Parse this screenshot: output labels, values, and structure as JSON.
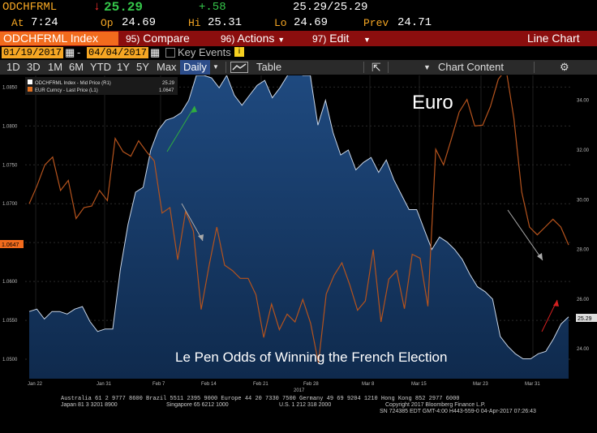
{
  "header": {
    "ticker": "ODCHFRML",
    "arrow": "↓",
    "last": "25.29",
    "change": "+.58",
    "bid_ask": "25.29/25.29",
    "at_label": "At",
    "time": "7:24",
    "op_label": "Op",
    "open": "24.69",
    "hi_label": "Hi",
    "high": "25.31",
    "lo_label": "Lo",
    "low": "24.69",
    "prev_label": "Prev",
    "prev": "24.71"
  },
  "menu": {
    "security": "ODCHFRML Index",
    "compare_num": "95)",
    "compare": "Compare",
    "actions_num": "96)",
    "actions": "Actions",
    "edit_num": "97)",
    "edit": "Edit",
    "view": "Line Chart"
  },
  "date_range": {
    "start": "01/19/2017",
    "dash": "-",
    "end": "04/04/2017",
    "key_events": "Key Events"
  },
  "toolbar": {
    "periods": [
      "1D",
      "3D",
      "1M",
      "6M",
      "YTD",
      "1Y",
      "5Y",
      "Max"
    ],
    "frequency": "Daily",
    "table": "Table",
    "chart_content": "Chart Content"
  },
  "legend": {
    "s1": "ODCHFRML Index - Mid Price (R1)",
    "s1_val": "25.29",
    "s2": "EUR Curncy - Last Price (L1)",
    "s2_val": "1.0647"
  },
  "annotations": {
    "euro": "Euro",
    "lepen": "Le Pen Odds of Winning the French Election"
  },
  "price_tags": {
    "left": "1.0647",
    "right": "25.29"
  },
  "footer": {
    "line1": "Australia 61 2 9777 8600 Brazil 5511 2395 9000 Europe 44 20 7330 7500 Germany 49 69 9204 1210 Hong Kong 852 2977 6000",
    "line2a": "Japan 81 3 3201 8900",
    "line2b": "Singapore 65 6212 1000",
    "line2c": "U.S. 1 212 318 2000",
    "line2d": "Copyright 2017 Bloomberg Finance L.P.",
    "line3": "SN 724385 EDT GMT-4:00 H443-559-0 04-Apr-2017 07:26:43"
  },
  "colors": {
    "accent_orange": "#f26b1d",
    "amber": "#f5a623",
    "menu_red": "#8b0e0e",
    "area_fill": "#173a66",
    "euro_line": "#b5531d"
  },
  "chart_data": {
    "type": "area",
    "title": "",
    "x_ticks": [
      "Jan 22",
      "Jan 31",
      "Feb 7",
      "Feb 14",
      "Feb 21",
      "Feb 28",
      "Mar 8",
      "Mar 15",
      "Mar 23",
      "Mar 31"
    ],
    "x_sub": "2017",
    "left_axis": {
      "ticks": [
        "1.0500",
        "1.0550",
        "1.0600",
        "1.0650",
        "1.0700",
        "1.0750",
        "1.0800",
        "1.0850"
      ],
      "ylim": [
        1.0475,
        1.0865
      ]
    },
    "right_axis": {
      "ticks": [
        "24.00",
        "26.00",
        "28.00",
        "30.00",
        "32.00",
        "34.00"
      ],
      "ylim": [
        22.8,
        35.0
      ]
    },
    "series": [
      {
        "name": "ODCHFRML Index - Mid Price (R1)",
        "axis": "right",
        "values": [
          25.5,
          25.6,
          25.2,
          25.5,
          25.5,
          25.4,
          25.6,
          25.7,
          25.1,
          24.7,
          24.8,
          24.8,
          27.2,
          29.0,
          30.3,
          30.5,
          32.0,
          32.8,
          33.2,
          33.3,
          33.5,
          34.0,
          35.0,
          35.0,
          34.9,
          34.5,
          35.0,
          34.2,
          33.8,
          34.2,
          34.6,
          34.8,
          34.1,
          34.5,
          35.0,
          35.3,
          35.0,
          35.0,
          33.0,
          34.0,
          32.7,
          31.8,
          32.0,
          31.2,
          31.5,
          31.7,
          31.1,
          31.6,
          30.8,
          30.2,
          29.6,
          29.6,
          28.8,
          28.0,
          28.5,
          28.3,
          28.0,
          27.6,
          27.0,
          26.5,
          26.3,
          26.0,
          24.5,
          24.1,
          23.8,
          23.6,
          23.6,
          23.8,
          23.9,
          24.4,
          25.0,
          25.29
        ]
      },
      {
        "name": "EUR Curncy - Last Price (L1)",
        "axis": "left",
        "values": [
          1.07,
          1.0723,
          1.075,
          1.076,
          1.0717,
          1.073,
          1.0681,
          1.0695,
          1.0697,
          1.0717,
          1.0704,
          1.0784,
          1.0767,
          1.0761,
          1.0781,
          1.0767,
          1.0755,
          1.0688,
          1.0695,
          1.0628,
          1.069,
          1.0665,
          1.0564,
          1.062,
          1.067,
          1.0621,
          1.0614,
          1.0604,
          1.0604,
          1.0583,
          1.0528,
          1.0571,
          1.0538,
          1.0558,
          1.0548,
          1.0577,
          1.0546,
          1.0495,
          1.0584,
          1.0608,
          1.0624,
          1.0596,
          1.0563,
          1.0575,
          1.0641,
          1.0548,
          1.0603,
          1.0614,
          1.0565,
          1.0635,
          1.063,
          1.0568,
          1.077,
          1.075,
          1.0783,
          1.0818,
          1.0834,
          1.08,
          1.0801,
          1.0825,
          1.086,
          1.0873,
          1.081,
          1.0715,
          1.067,
          1.066,
          1.067,
          1.068,
          1.067,
          1.0647
        ]
      }
    ]
  }
}
